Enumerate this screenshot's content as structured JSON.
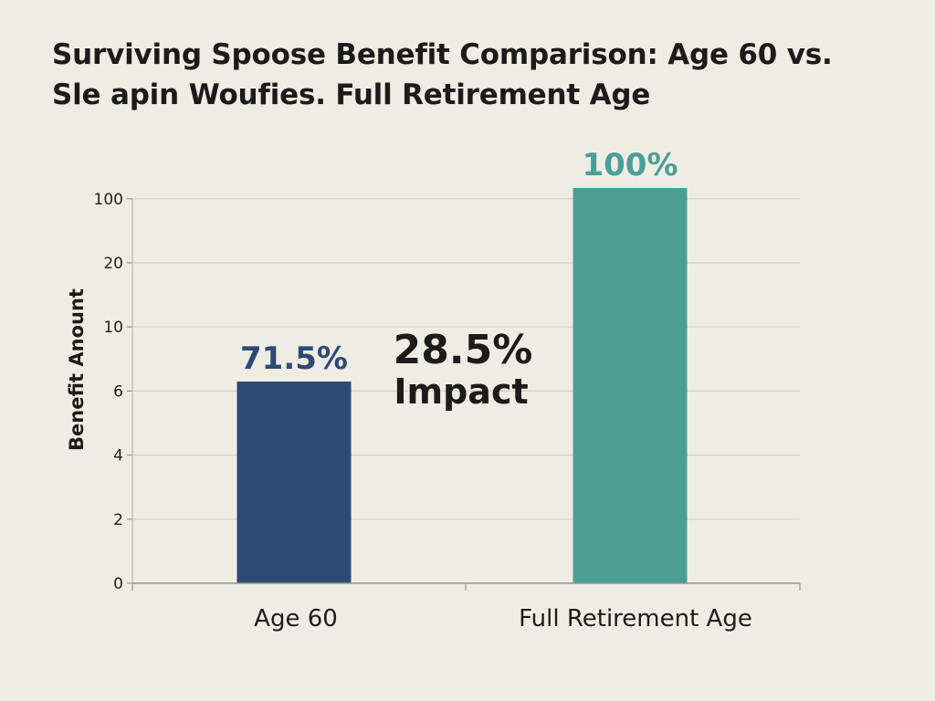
{
  "chart_data": {
    "type": "bar",
    "title_line1": "Surviving Spoose Benefit Comparison: Age 60 vs.",
    "title_line2": "Sle apin Woufies. Full Retirement Age",
    "ylabel": "Benefit Anount",
    "xlabel": "",
    "y_ticks": [
      "0",
      "2",
      "4",
      "6",
      "10",
      "20",
      "100"
    ],
    "categories": [
      "Age 60",
      "Full Retirement Age"
    ],
    "values": [
      71.5,
      100
    ],
    "value_labels": [
      "71.5%",
      "100%"
    ],
    "bar_colors": [
      "#2d4a74",
      "#4b9e96"
    ],
    "label_colors": [
      "#2d4a74",
      "#4b9e96"
    ],
    "annotation": {
      "main": "28.5%",
      "sub": "Impact"
    },
    "grid": true,
    "legend": "none"
  }
}
